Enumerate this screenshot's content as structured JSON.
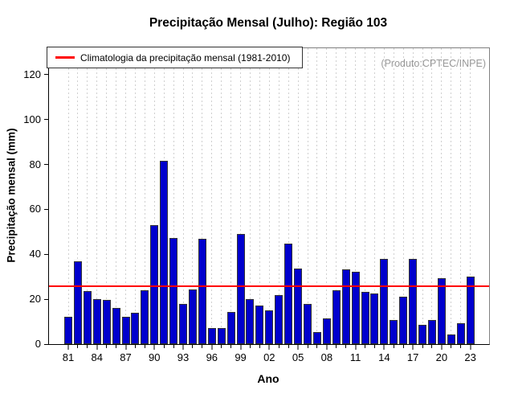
{
  "title": "Precipitação Mensal (Julho): Região 103",
  "watermark": "(Produto:CPTEC/INPE)",
  "legend": {
    "label": "Climatologia da precipitação mensal (1981-2010)",
    "line_color": "#ff0000"
  },
  "chart_data": {
    "type": "bar",
    "title": "Precipitação Mensal (Julho): Região 103",
    "xlabel": "Ano",
    "ylabel": "Precipitação mensal (mm)",
    "ylim": [
      0,
      131.8
    ],
    "yticks": [
      0,
      20,
      40,
      60,
      80,
      100,
      120
    ],
    "grid": "vertical-dashed",
    "legend_position": "top-left",
    "categories": [
      "81",
      "82",
      "83",
      "84",
      "85",
      "86",
      "87",
      "88",
      "89",
      "90",
      "91",
      "92",
      "93",
      "94",
      "95",
      "96",
      "97",
      "98",
      "99",
      "00",
      "01",
      "02",
      "03",
      "04",
      "05",
      "06",
      "07",
      "08",
      "09",
      "10",
      "11",
      "12",
      "13",
      "14",
      "15",
      "16",
      "17",
      "18",
      "19",
      "20",
      "21",
      "22",
      "23"
    ],
    "label_every": 3,
    "values": [
      12.3,
      36.8,
      23.8,
      20.2,
      19.8,
      16.2,
      12.1,
      13.9,
      23.9,
      52.9,
      81.7,
      47.3,
      18.0,
      24.2,
      46.8,
      7.3,
      7.3,
      14.2,
      49.2,
      20.2,
      17.1,
      15.0,
      21.8,
      44.6,
      33.7,
      17.9,
      5.3,
      11.5,
      24.0,
      33.2,
      32.1,
      23.4,
      22.6,
      38.0,
      10.6,
      21.0,
      37.9,
      8.5,
      10.6,
      29.2,
      4.3,
      9.3,
      30.1
    ],
    "climatology_line": 25.8,
    "colors": {
      "bar_fill": "#0000cd",
      "bar_border": "#333333",
      "climatology": "#ff0000",
      "grid": "#cfcfcf",
      "frame": "#808080",
      "watermark_text": "#999999"
    }
  }
}
